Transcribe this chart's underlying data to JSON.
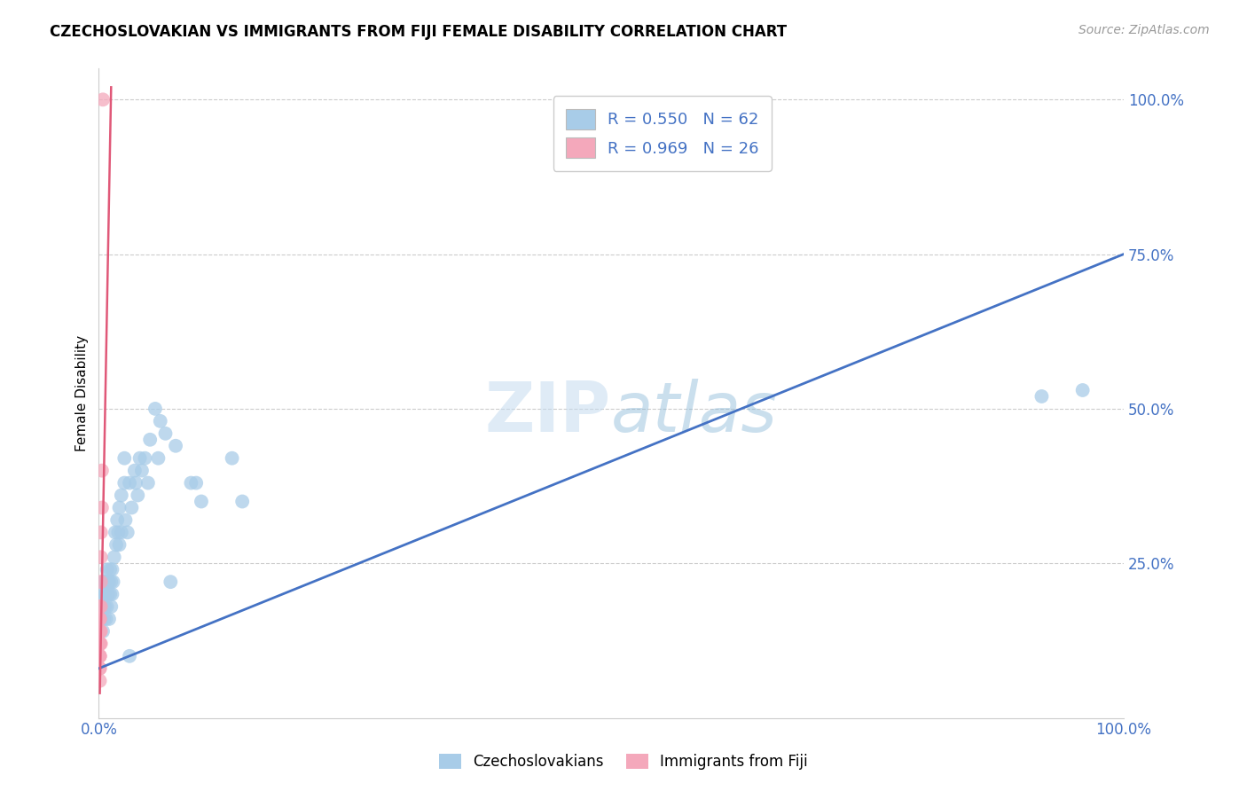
{
  "title": "CZECHOSLOVAKIAN VS IMMIGRANTS FROM FIJI FEMALE DISABILITY CORRELATION CHART",
  "source": "Source: ZipAtlas.com",
  "ylabel": "Female Disability",
  "watermark": "ZIPatlas",
  "legend_r1": "R = 0.550",
  "legend_n1": "N = 62",
  "legend_r2": "R = 0.969",
  "legend_n2": "N = 26",
  "blue_color": "#a8cce8",
  "pink_color": "#f4a8bb",
  "blue_line_color": "#4472c4",
  "pink_line_color": "#e05878",
  "blue_scatter": [
    [
      0.002,
      0.18
    ],
    [
      0.003,
      0.16
    ],
    [
      0.003,
      0.2
    ],
    [
      0.004,
      0.22
    ],
    [
      0.004,
      0.14
    ],
    [
      0.005,
      0.18
    ],
    [
      0.005,
      0.16
    ],
    [
      0.005,
      0.22
    ],
    [
      0.006,
      0.2
    ],
    [
      0.006,
      0.18
    ],
    [
      0.007,
      0.22
    ],
    [
      0.007,
      0.16
    ],
    [
      0.008,
      0.18
    ],
    [
      0.008,
      0.24
    ],
    [
      0.009,
      0.2
    ],
    [
      0.009,
      0.22
    ],
    [
      0.01,
      0.16
    ],
    [
      0.01,
      0.22
    ],
    [
      0.011,
      0.24
    ],
    [
      0.011,
      0.2
    ],
    [
      0.012,
      0.22
    ],
    [
      0.012,
      0.18
    ],
    [
      0.013,
      0.24
    ],
    [
      0.013,
      0.2
    ],
    [
      0.014,
      0.22
    ],
    [
      0.015,
      0.26
    ],
    [
      0.016,
      0.3
    ],
    [
      0.017,
      0.28
    ],
    [
      0.018,
      0.32
    ],
    [
      0.019,
      0.3
    ],
    [
      0.02,
      0.28
    ],
    [
      0.02,
      0.34
    ],
    [
      0.022,
      0.36
    ],
    [
      0.022,
      0.3
    ],
    [
      0.025,
      0.42
    ],
    [
      0.025,
      0.38
    ],
    [
      0.026,
      0.32
    ],
    [
      0.028,
      0.3
    ],
    [
      0.03,
      0.38
    ],
    [
      0.032,
      0.34
    ],
    [
      0.035,
      0.4
    ],
    [
      0.036,
      0.38
    ],
    [
      0.038,
      0.36
    ],
    [
      0.04,
      0.42
    ],
    [
      0.042,
      0.4
    ],
    [
      0.045,
      0.42
    ],
    [
      0.048,
      0.38
    ],
    [
      0.05,
      0.45
    ],
    [
      0.055,
      0.5
    ],
    [
      0.058,
      0.42
    ],
    [
      0.06,
      0.48
    ],
    [
      0.065,
      0.46
    ],
    [
      0.07,
      0.22
    ],
    [
      0.075,
      0.44
    ],
    [
      0.09,
      0.38
    ],
    [
      0.095,
      0.38
    ],
    [
      0.1,
      0.35
    ],
    [
      0.13,
      0.42
    ],
    [
      0.14,
      0.35
    ],
    [
      0.92,
      0.52
    ],
    [
      0.96,
      0.53
    ],
    [
      0.03,
      0.1
    ]
  ],
  "pink_scatter": [
    [
      0.001,
      0.12
    ],
    [
      0.001,
      0.14
    ],
    [
      0.001,
      0.16
    ],
    [
      0.001,
      0.18
    ],
    [
      0.001,
      0.1
    ],
    [
      0.001,
      0.12
    ],
    [
      0.001,
      0.08
    ],
    [
      0.001,
      0.14
    ],
    [
      0.001,
      0.16
    ],
    [
      0.001,
      0.1
    ],
    [
      0.001,
      0.12
    ],
    [
      0.001,
      0.14
    ],
    [
      0.001,
      0.12
    ],
    [
      0.001,
      0.1
    ],
    [
      0.001,
      0.08
    ],
    [
      0.001,
      0.16
    ],
    [
      0.002,
      0.3
    ],
    [
      0.002,
      0.26
    ],
    [
      0.002,
      0.22
    ],
    [
      0.002,
      0.18
    ],
    [
      0.002,
      0.14
    ],
    [
      0.002,
      0.12
    ],
    [
      0.003,
      0.4
    ],
    [
      0.003,
      0.34
    ],
    [
      0.004,
      1.0
    ],
    [
      0.001,
      0.06
    ]
  ],
  "xlim": [
    0.0,
    1.0
  ],
  "ylim": [
    0.0,
    1.05
  ],
  "ytick_vals": [
    0.25,
    0.5,
    0.75,
    1.0
  ],
  "ytick_labels": [
    "25.0%",
    "50.0%",
    "75.0%",
    "100.0%"
  ],
  "xtick_vals": [
    0.0,
    1.0
  ],
  "xtick_labels": [
    "0.0%",
    "100.0%"
  ],
  "blue_trend_x": [
    0.0,
    1.0
  ],
  "blue_trend_y": [
    0.08,
    0.75
  ],
  "pink_trend_x": [
    0.001,
    0.012
  ],
  "pink_trend_y": [
    0.04,
    1.02
  ]
}
